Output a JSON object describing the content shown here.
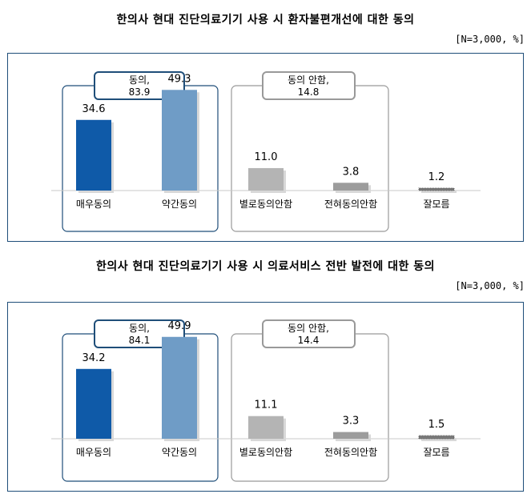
{
  "charts": [
    {
      "title": "한의사 현대 진단의료기기 사용 시 환자불편개선에 대한 동의",
      "note": "[N=3,000, %]",
      "groups": [
        {
          "label": "동의,",
          "value": "83.9"
        },
        {
          "label": "동의 안함,",
          "value": "14.8"
        }
      ]
    },
    {
      "title": "한의사 현대 진단의료기기 사용 시 의료서비스 전반 발전에 대한 동의",
      "note": "[N=3,000, %]",
      "groups": [
        {
          "label": "동의,",
          "value": "84.1"
        },
        {
          "label": "동의 안함,",
          "value": "14.4"
        }
      ]
    }
  ],
  "chart_data": [
    {
      "type": "bar",
      "title": "한의사 현대 진단의료기기 사용 시 환자불편개선에 대한 동의",
      "categories": [
        "매우동의",
        "약간동의",
        "별로동의안함",
        "전혀동의안함",
        "잘모름"
      ],
      "values": [
        34.6,
        49.3,
        11.0,
        3.8,
        1.2
      ],
      "value_labels": [
        "34.6",
        "49.3",
        "11.0",
        "3.8",
        "1.2"
      ],
      "colors": [
        "#0f5aa8",
        "#6f9cc6",
        "#b4b4b4",
        "#9c9c9c",
        "#7a7a7a"
      ],
      "ylim": [
        0,
        60
      ]
    },
    {
      "type": "bar",
      "title": "한의사 현대 진단의료기기 사용 시 의료서비스 전반 발전에 대한 동의",
      "categories": [
        "매우동의",
        "약간동의",
        "별로동의안함",
        "전혀동의안함",
        "잘모름"
      ],
      "values": [
        34.2,
        49.9,
        11.1,
        3.3,
        1.5
      ],
      "value_labels": [
        "34.2",
        "49.9",
        "11.1",
        "3.3",
        "1.5"
      ],
      "colors": [
        "#0f5aa8",
        "#6f9cc6",
        "#b4b4b4",
        "#9c9c9c",
        "#7a7a7a"
      ],
      "ylim": [
        0,
        60
      ]
    }
  ]
}
